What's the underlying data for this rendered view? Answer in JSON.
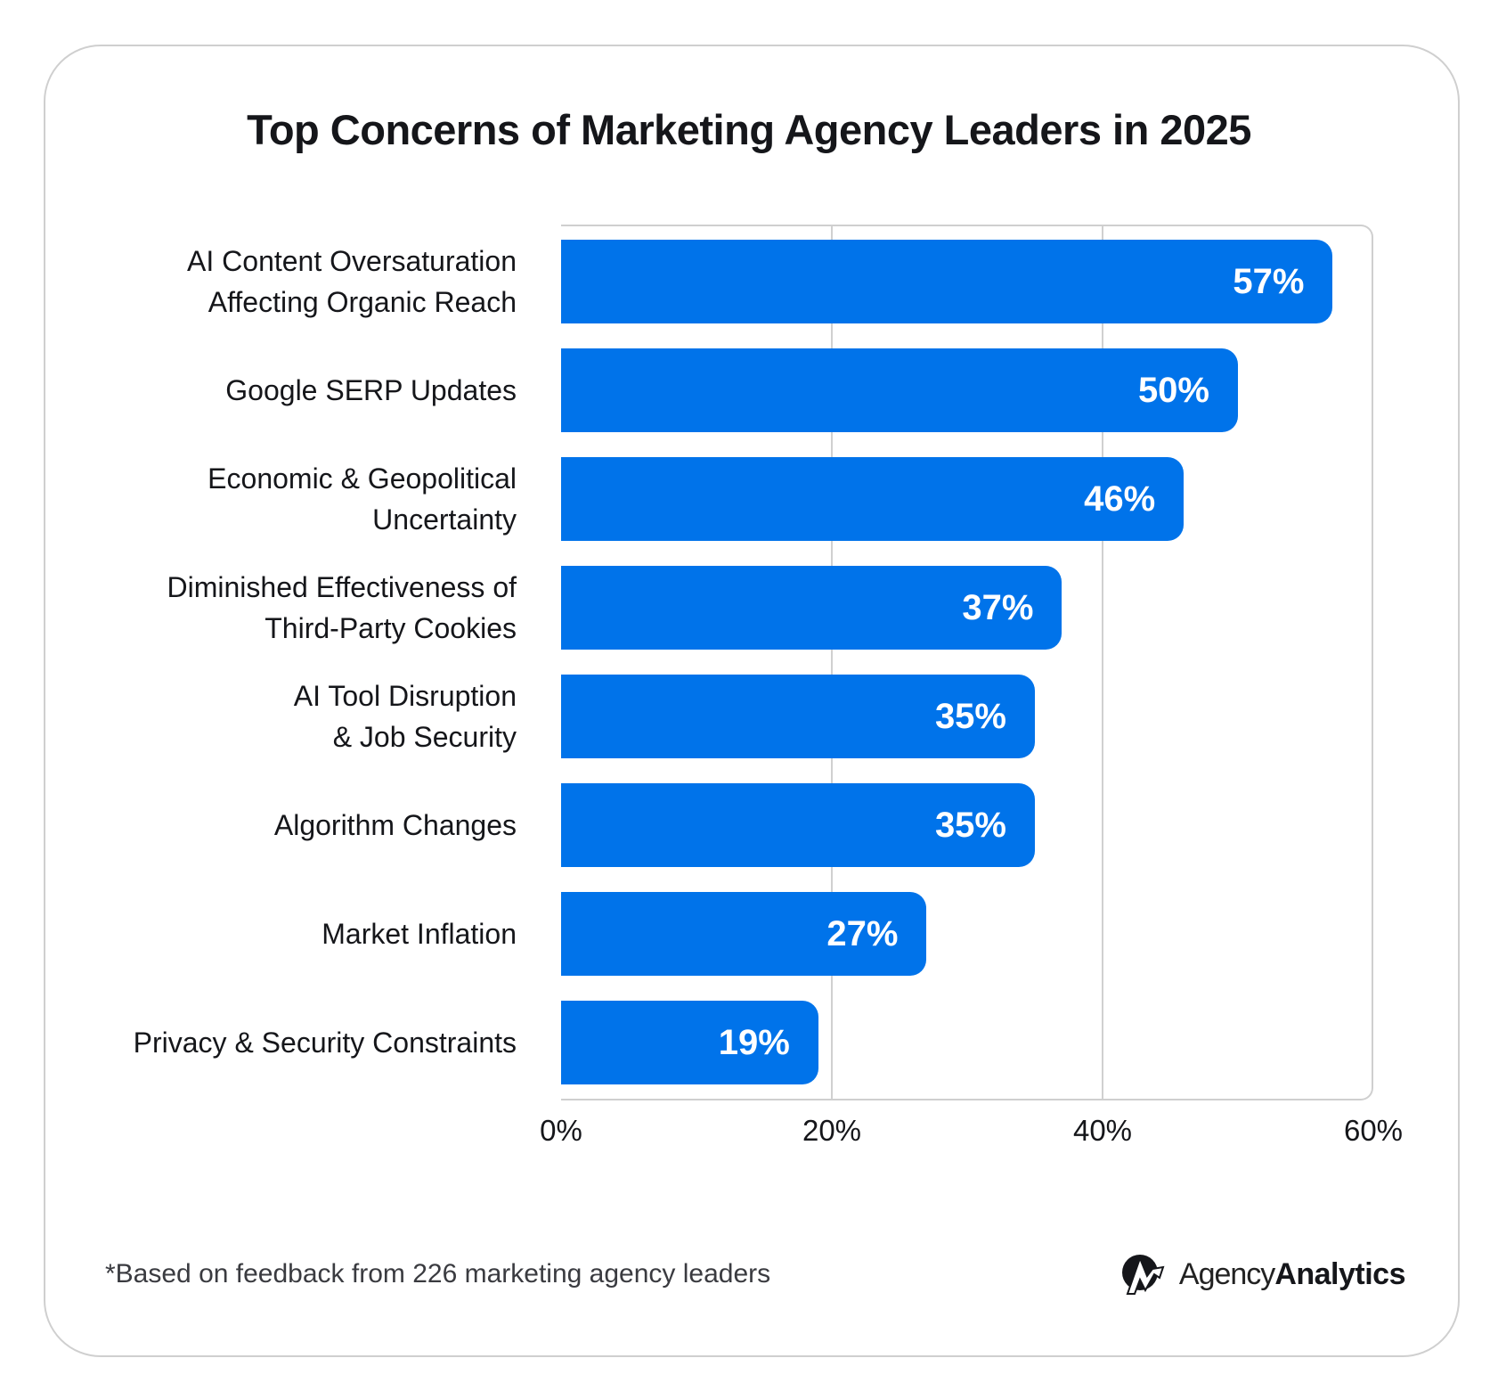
{
  "chart_data": {
    "type": "bar",
    "orientation": "horizontal",
    "title": "Top Concerns of Marketing Agency Leaders in 2025",
    "categories": [
      "AI Content Oversaturation\nAffecting Organic Reach",
      "Google SERP Updates",
      "Economic & Geopolitical\nUncertainty",
      "Diminished Effectiveness of\nThird-Party Cookies",
      "AI Tool Disruption\n& Job Security",
      "Algorithm Changes",
      "Market Inflation",
      "Privacy & Security Constraints"
    ],
    "values": [
      57,
      50,
      46,
      37,
      35,
      35,
      27,
      19
    ],
    "data_labels": [
      "57%",
      "50%",
      "46%",
      "37%",
      "35%",
      "35%",
      "27%",
      "19%"
    ],
    "xlim": [
      0,
      60
    ],
    "x_ticks": [
      "0%",
      "20%",
      "40%",
      "60%"
    ],
    "grid": true,
    "bar_color": "#0073ea"
  },
  "footnote": "*Based on feedback from 226 marketing agency leaders",
  "logo": {
    "part1": "Agency",
    "part2": "Analytics"
  }
}
